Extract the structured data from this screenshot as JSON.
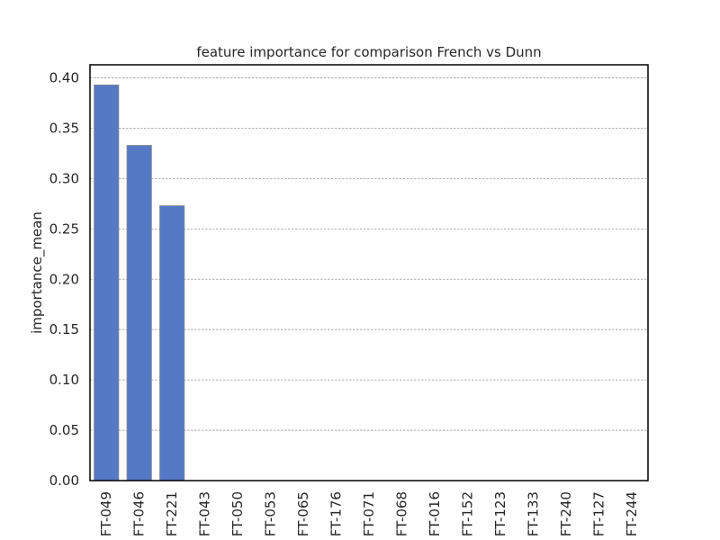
{
  "chart_data": {
    "type": "bar",
    "title": "feature importance for comparison French vs Dunn",
    "xlabel": "",
    "ylabel": "importance_mean",
    "categories": [
      "FT-049",
      "FT-046",
      "FT-221",
      "FT-043",
      "FT-050",
      "FT-053",
      "FT-065",
      "FT-176",
      "FT-071",
      "FT-068",
      "FT-016",
      "FT-152",
      "FT-123",
      "FT-133",
      "FT-240",
      "FT-127",
      "FT-244"
    ],
    "values": [
      0.393,
      0.333,
      0.273,
      0,
      0,
      0,
      0,
      0,
      0,
      0,
      0,
      0,
      0,
      0,
      0,
      0,
      0
    ],
    "ylim": [
      0,
      0.413
    ],
    "yticks": [
      "0.00",
      "0.05",
      "0.10",
      "0.15",
      "0.20",
      "0.25",
      "0.30",
      "0.35",
      "0.40"
    ],
    "grid": "horizontal dashed",
    "bar_color": "#5579c5",
    "bar_edge_color": "#8a8a8a",
    "grid_color": "#9a9a9a"
  }
}
